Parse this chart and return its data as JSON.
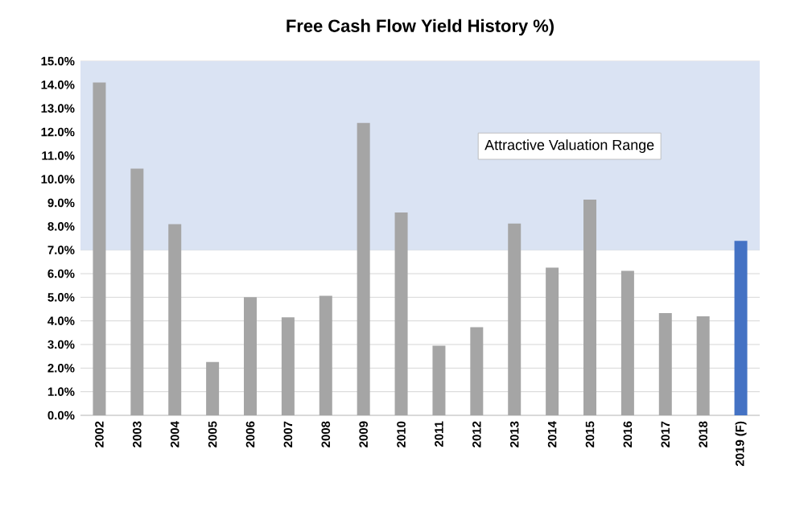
{
  "chart_data": {
    "type": "bar",
    "title": "Free Cash Flow Yield History %)",
    "categories": [
      "2002",
      "2003",
      "2004",
      "2005",
      "2006",
      "2007",
      "2008",
      "2009",
      "2010",
      "2011",
      "2012",
      "2013",
      "2014",
      "2015",
      "2016",
      "2017",
      "2018",
      "2019 (F)"
    ],
    "values": [
      14.1,
      10.45,
      8.1,
      2.26,
      5.0,
      4.15,
      5.06,
      12.38,
      8.59,
      2.95,
      3.73,
      8.12,
      6.26,
      9.14,
      6.12,
      4.33,
      4.19,
      7.39
    ],
    "colors": [
      "#a5a5a5",
      "#a5a5a5",
      "#a5a5a5",
      "#a5a5a5",
      "#a5a5a5",
      "#a5a5a5",
      "#a5a5a5",
      "#a5a5a5",
      "#a5a5a5",
      "#a5a5a5",
      "#a5a5a5",
      "#a5a5a5",
      "#a5a5a5",
      "#a5a5a5",
      "#a5a5a5",
      "#a5a5a5",
      "#a5a5a5",
      "#4472c4"
    ],
    "ylim": [
      0,
      15
    ],
    "yticks": [
      {
        "value": 0,
        "label": "0.0%"
      },
      {
        "value": 1,
        "label": "1.0%"
      },
      {
        "value": 2,
        "label": "2.0%"
      },
      {
        "value": 3,
        "label": "3.0%"
      },
      {
        "value": 4,
        "label": "4.0%"
      },
      {
        "value": 5,
        "label": "5.0%"
      },
      {
        "value": 6,
        "label": "6.0%"
      },
      {
        "value": 7,
        "label": "7.0%"
      },
      {
        "value": 8,
        "label": "8.0%"
      },
      {
        "value": 9,
        "label": "9.0%"
      },
      {
        "value": 10,
        "label": "10.0%"
      },
      {
        "value": 11,
        "label": "11.0%"
      },
      {
        "value": 12,
        "label": "12.0%"
      },
      {
        "value": 13,
        "label": "13.0%"
      },
      {
        "value": 14,
        "label": "14.0%"
      },
      {
        "value": 15,
        "label": "15.0%"
      }
    ],
    "grid": "y",
    "bands": [
      {
        "axis": "y",
        "from": 7,
        "to": 15,
        "label": "Attractive Valuation Range",
        "color": "#dae3f3"
      }
    ]
  }
}
